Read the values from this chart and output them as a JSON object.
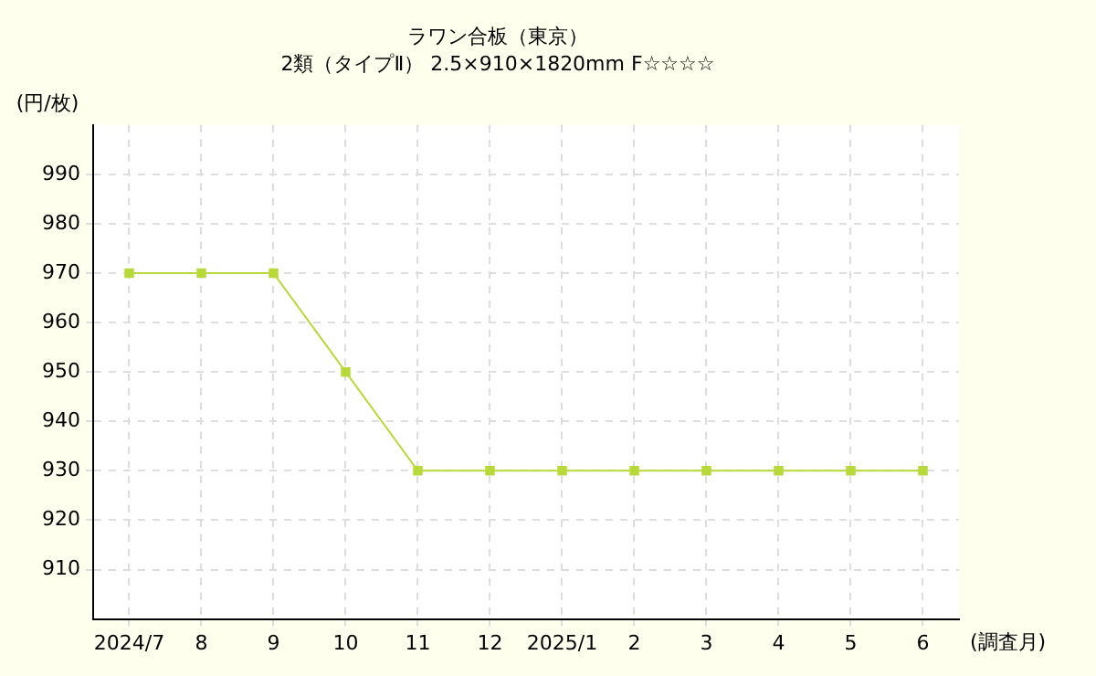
{
  "chart_data": {
    "type": "line",
    "title": "ラワン合板（東京）",
    "subtitle": "2類（タイプⅡ） 2.5×910×1820mm F☆☆☆☆",
    "ylabel": "(円/枚)",
    "xlabel": "(調査月)",
    "categories": [
      "2024/7",
      "8",
      "9",
      "10",
      "11",
      "12",
      "2025/1",
      "2",
      "3",
      "4",
      "5",
      "6"
    ],
    "series": [
      {
        "color": "#b8d93a",
        "values": [
          970,
          970,
          970,
          950,
          930,
          930,
          930,
          930,
          930,
          930,
          930,
          930
        ]
      }
    ],
    "ylim": [
      900,
      1000
    ],
    "yticks": [
      910,
      920,
      930,
      940,
      950,
      960,
      970,
      980,
      990
    ],
    "grid": true,
    "legend": false,
    "marker": "square",
    "line_style": "solid"
  }
}
